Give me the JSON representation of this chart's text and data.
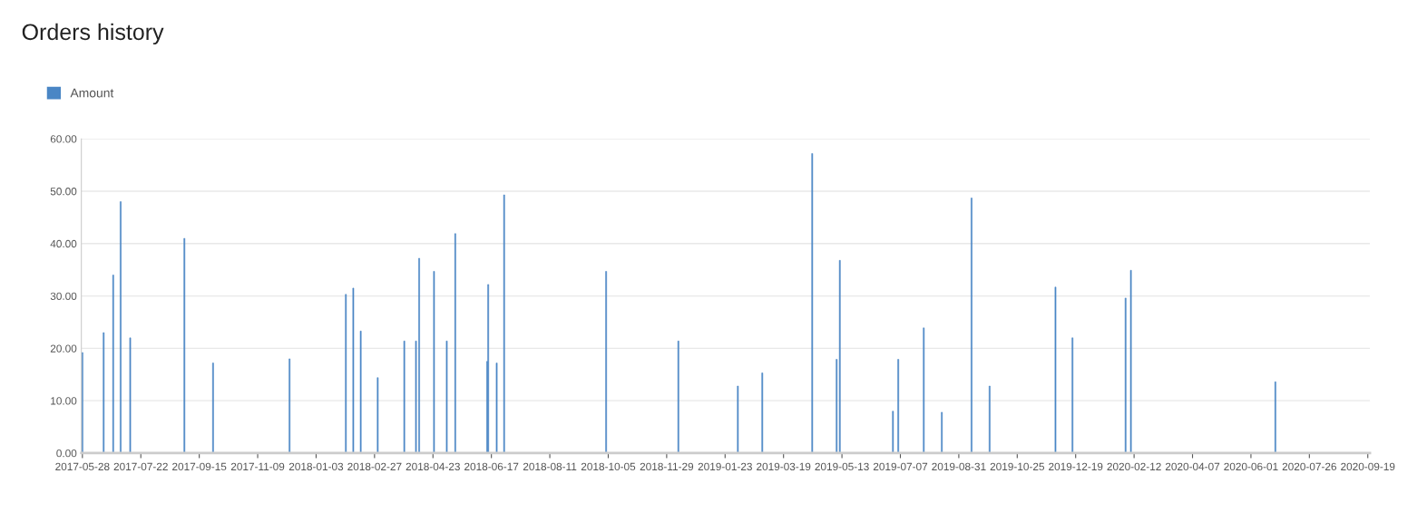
{
  "chart_data": {
    "type": "bar",
    "title": "Orders history",
    "x": [
      "2017-05-28",
      "2017-06-17",
      "2017-06-26",
      "2017-07-03",
      "2017-07-12",
      "2017-09-01",
      "2017-09-28",
      "2017-12-09",
      "2018-01-31",
      "2018-02-07",
      "2018-02-14",
      "2018-03-02",
      "2018-03-27",
      "2018-04-07",
      "2018-04-10",
      "2018-04-24",
      "2018-05-06",
      "2018-05-14",
      "2018-06-13",
      "2018-06-14",
      "2018-06-22",
      "2018-06-29",
      "2018-10-03",
      "2018-12-10",
      "2019-02-04",
      "2019-02-27",
      "2019-04-15",
      "2019-05-08",
      "2019-05-11",
      "2019-06-30",
      "2019-07-05",
      "2019-07-29",
      "2019-08-15",
      "2019-09-12",
      "2019-09-29",
      "2019-11-30",
      "2019-12-16",
      "2020-02-04",
      "2020-02-09",
      "2020-06-24"
    ],
    "series": [
      {
        "name": "Amount",
        "color": "#4a86c5",
        "values": [
          19.2,
          23,
          34,
          48,
          22,
          41,
          17.2,
          18,
          30.3,
          31.5,
          23.3,
          14.4,
          21.4,
          21.4,
          37.2,
          34.7,
          21.4,
          41.9,
          17.5,
          32.2,
          17.2,
          49.3,
          34.7,
          21.4,
          12.8,
          15.3,
          57.2,
          17.9,
          36.8,
          8,
          17.9,
          23.9,
          7.8,
          48.7,
          12.8,
          31.7,
          22,
          29.6,
          34.9,
          13.6
        ]
      }
    ],
    "xlim": [
      "2017-05-27",
      "2020-09-21"
    ],
    "xticks": [
      "2017-05-28",
      "2017-07-22",
      "2017-09-15",
      "2017-11-09",
      "2018-01-03",
      "2018-02-27",
      "2018-04-23",
      "2018-06-17",
      "2018-08-11",
      "2018-10-05",
      "2018-11-29",
      "2019-01-23",
      "2019-03-19",
      "2019-05-13",
      "2019-07-07",
      "2019-08-31",
      "2019-10-25",
      "2019-12-19",
      "2020-02-12",
      "2020-04-07",
      "2020-06-01",
      "2020-07-26",
      "2020-09-19"
    ],
    "ylim": [
      0,
      60
    ],
    "yticks": [
      {
        "value": 0,
        "label": "0.00"
      },
      {
        "value": 10,
        "label": "10.00"
      },
      {
        "value": 20,
        "label": "20.00"
      },
      {
        "value": 30,
        "label": "30.00"
      },
      {
        "value": 40,
        "label": "40.00"
      },
      {
        "value": 50,
        "label": "50.00"
      },
      {
        "value": 60,
        "label": "60.00"
      }
    ],
    "grid": "y",
    "legend": "top left"
  }
}
